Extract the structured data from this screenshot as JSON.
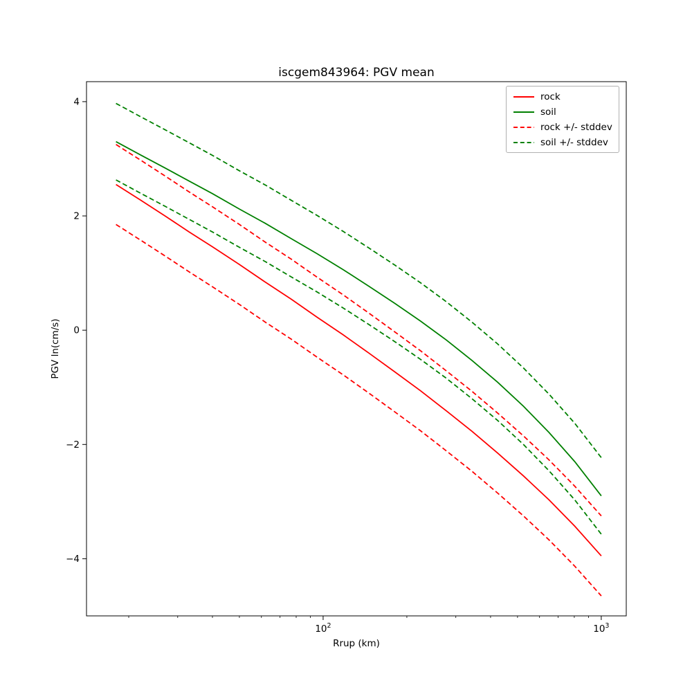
{
  "chart_data": {
    "type": "line",
    "title": "iscgem843964: PGV mean",
    "xlabel": "Rrup (km)",
    "ylabel": "PGV ln(cm/s)",
    "x_scale": "log",
    "grid": false,
    "xlim": [
      14.1,
      1230
    ],
    "ylim": [
      -5.0,
      4.35
    ],
    "x": [
      18,
      22,
      27,
      33,
      40,
      50,
      62,
      77,
      95,
      118,
      146,
      181,
      224,
      277,
      343,
      424,
      525,
      649,
      803,
      1000
    ],
    "series": [
      {
        "name": "rock",
        "color": "#ff0000",
        "style": "solid",
        "values": [
          2.55,
          2.28,
          2.0,
          1.72,
          1.46,
          1.15,
          0.84,
          0.54,
          0.23,
          -0.08,
          -0.4,
          -0.73,
          -1.06,
          -1.41,
          -1.77,
          -2.15,
          -2.55,
          -2.97,
          -3.43,
          -3.95
        ]
      },
      {
        "name": "soil",
        "color": "#008000",
        "style": "solid",
        "values": [
          3.3,
          3.07,
          2.84,
          2.61,
          2.39,
          2.12,
          1.87,
          1.6,
          1.34,
          1.06,
          0.77,
          0.47,
          0.16,
          -0.17,
          -0.53,
          -0.91,
          -1.33,
          -1.79,
          -2.3,
          -2.9
        ]
      },
      {
        "name": "rock plus stddev",
        "color": "#ff0000",
        "style": "dashed",
        "values": [
          3.25,
          2.98,
          2.7,
          2.42,
          2.16,
          1.85,
          1.54,
          1.24,
          0.93,
          0.62,
          0.3,
          -0.03,
          -0.36,
          -0.71,
          -1.07,
          -1.45,
          -1.85,
          -2.27,
          -2.73,
          -3.25
        ]
      },
      {
        "name": "rock minus stddev",
        "color": "#ff0000",
        "style": "dashed",
        "values": [
          1.85,
          1.58,
          1.3,
          1.02,
          0.76,
          0.45,
          0.14,
          -0.16,
          -0.47,
          -0.78,
          -1.1,
          -1.43,
          -1.76,
          -2.11,
          -2.47,
          -2.85,
          -3.25,
          -3.67,
          -4.13,
          -4.65
        ]
      },
      {
        "name": "soil plus stddev",
        "color": "#008000",
        "style": "dashed",
        "values": [
          3.97,
          3.74,
          3.51,
          3.28,
          3.06,
          2.79,
          2.54,
          2.27,
          2.01,
          1.73,
          1.44,
          1.14,
          0.83,
          0.5,
          0.14,
          -0.24,
          -0.66,
          -1.12,
          -1.63,
          -2.23
        ]
      },
      {
        "name": "soil minus stddev",
        "color": "#008000",
        "style": "dashed",
        "values": [
          2.63,
          2.4,
          2.17,
          1.94,
          1.72,
          1.45,
          1.2,
          0.93,
          0.67,
          0.39,
          0.1,
          -0.2,
          -0.51,
          -0.84,
          -1.2,
          -1.58,
          -2.0,
          -2.46,
          -2.97,
          -3.57
        ]
      }
    ],
    "legend": {
      "position": "upper right",
      "entries": [
        {
          "label": "rock",
          "color": "#ff0000",
          "style": "solid"
        },
        {
          "label": "soil",
          "color": "#008000",
          "style": "solid"
        },
        {
          "label": "rock +/- stddev",
          "color": "#ff0000",
          "style": "dashed"
        },
        {
          "label": "soil +/- stddev",
          "color": "#008000",
          "style": "dashed"
        }
      ]
    },
    "x_ticks": [
      {
        "value": 100,
        "base": "10",
        "exp": "2"
      },
      {
        "value": 1000,
        "base": "10",
        "exp": "3"
      }
    ],
    "y_ticks": [
      {
        "value": 4,
        "label": "4"
      },
      {
        "value": 2,
        "label": "2"
      },
      {
        "value": 0,
        "label": "0"
      },
      {
        "value": -2,
        "label": "−2"
      },
      {
        "value": -4,
        "label": "−4"
      }
    ]
  }
}
